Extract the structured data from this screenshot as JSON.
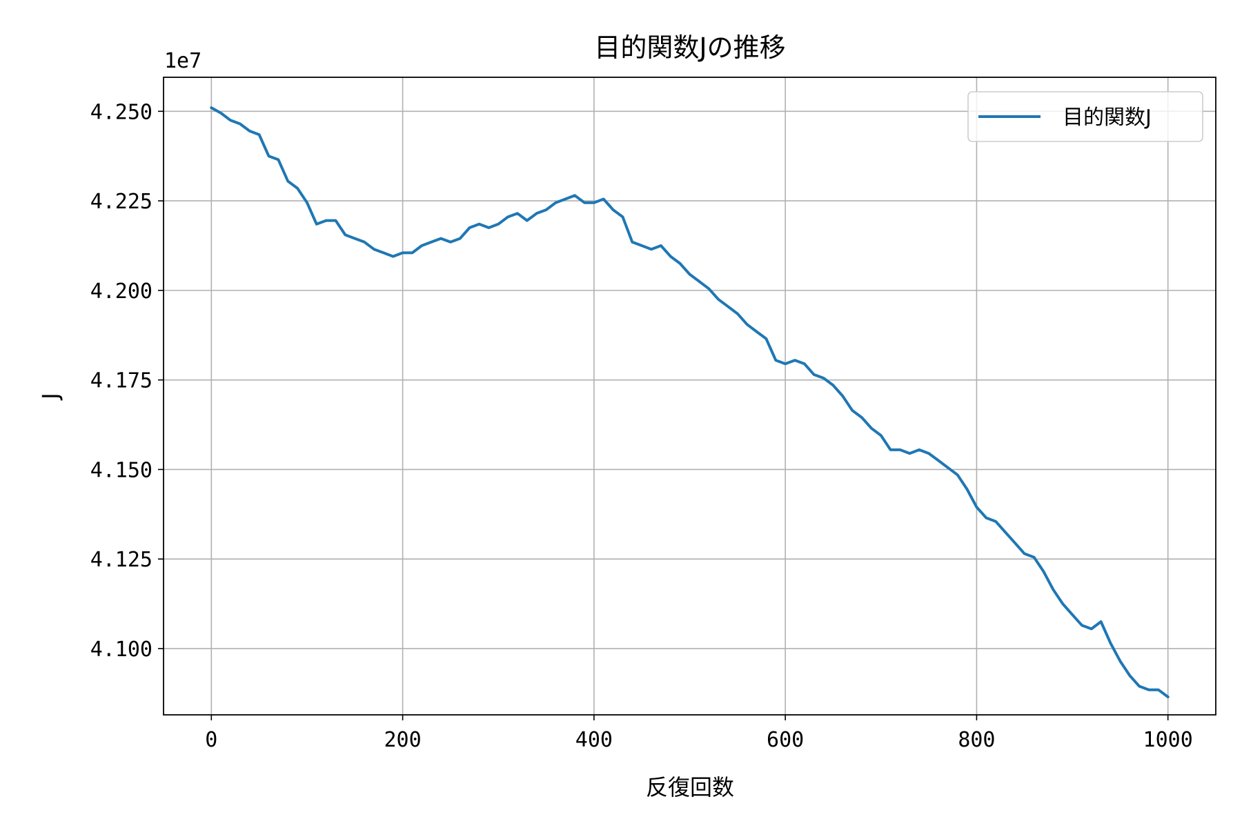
{
  "chart_data": {
    "type": "line",
    "title": "目的関数Jの推移",
    "xlabel": "反復回数",
    "ylabel": "J",
    "y_offset_label": "1e7",
    "xlim": [
      -50,
      1050
    ],
    "ylim": [
      4.0815,
      4.2595
    ],
    "xticks": [
      0,
      200,
      400,
      600,
      800,
      1000
    ],
    "xtick_labels": [
      "0",
      "200",
      "400",
      "600",
      "800",
      "1000"
    ],
    "yticks": [
      4.1,
      4.125,
      4.15,
      4.175,
      4.2,
      4.225,
      4.25
    ],
    "ytick_labels": [
      "4.100",
      "4.125",
      "4.150",
      "4.175",
      "4.200",
      "4.225",
      "4.250"
    ],
    "grid": true,
    "legend_position": "top-right",
    "series": [
      {
        "name": "目的関数J",
        "color": "#1f77b4",
        "x": [
          0,
          10,
          20,
          30,
          40,
          50,
          60,
          70,
          80,
          90,
          100,
          110,
          120,
          130,
          140,
          150,
          160,
          170,
          180,
          190,
          200,
          210,
          220,
          230,
          240,
          250,
          260,
          270,
          280,
          290,
          300,
          310,
          320,
          330,
          340,
          350,
          360,
          370,
          380,
          390,
          400,
          410,
          420,
          430,
          440,
          450,
          460,
          470,
          480,
          490,
          500,
          510,
          520,
          530,
          540,
          550,
          560,
          570,
          580,
          590,
          600,
          610,
          620,
          630,
          640,
          650,
          660,
          670,
          680,
          690,
          700,
          710,
          720,
          730,
          740,
          750,
          760,
          770,
          780,
          790,
          800,
          810,
          820,
          830,
          840,
          850,
          860,
          870,
          880,
          890,
          900,
          910,
          920,
          930,
          940,
          950,
          960,
          970,
          980,
          990,
          1000
        ],
        "y": [
          4.251,
          4.2495,
          4.2475,
          4.2465,
          4.2445,
          4.2435,
          4.2375,
          4.2365,
          4.2305,
          4.2285,
          4.2245,
          4.2185,
          4.2195,
          4.2195,
          4.2155,
          4.2145,
          4.2135,
          4.2115,
          4.2105,
          4.2095,
          4.2105,
          4.2105,
          4.2125,
          4.2135,
          4.2145,
          4.2135,
          4.2145,
          4.2175,
          4.2185,
          4.2175,
          4.2185,
          4.2205,
          4.2215,
          4.2195,
          4.2215,
          4.2225,
          4.2245,
          4.2255,
          4.2265,
          4.2245,
          4.2245,
          4.2255,
          4.2225,
          4.2205,
          4.2135,
          4.2125,
          4.2115,
          4.2125,
          4.2095,
          4.2075,
          4.2045,
          4.2025,
          4.2005,
          4.1975,
          4.1955,
          4.1935,
          4.1905,
          4.1885,
          4.1865,
          4.1805,
          4.1795,
          4.1805,
          4.1795,
          4.1765,
          4.1755,
          4.1735,
          4.1705,
          4.1665,
          4.1645,
          4.1615,
          4.1595,
          4.1555,
          4.1555,
          4.1545,
          4.1555,
          4.1545,
          4.1525,
          4.1505,
          4.1485,
          4.1445,
          4.1395,
          4.1365,
          4.1355,
          4.1325,
          4.1295,
          4.1265,
          4.1255,
          4.1215,
          4.1165,
          4.1125,
          4.1095,
          4.1065,
          4.1055,
          4.1075,
          4.1015,
          4.0965,
          4.0925,
          4.0895,
          4.0885,
          4.0885,
          4.0865
        ]
      }
    ]
  }
}
